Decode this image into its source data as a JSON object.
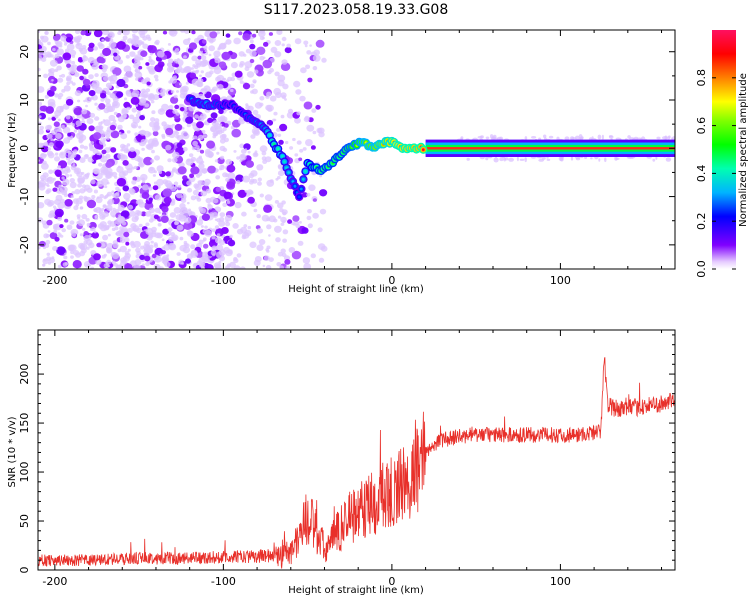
{
  "title": "S117.2023.058.19.33.G08",
  "colors": {
    "snr_line": "#e8302a",
    "low_amplitude": "#d9b3ff",
    "mid_amplitude": "#6a00ff",
    "high_amplitude": "#ff2020"
  },
  "chart_data": [
    {
      "type": "heatmap",
      "name": "spectrogram",
      "xlabel": "Height of straight line (km)",
      "ylabel": "Frequency (Hz)",
      "xlim": [
        -210,
        168
      ],
      "ylim": [
        -25,
        24.5
      ],
      "xticks": [
        -200,
        -100,
        0,
        100
      ],
      "yticks": [
        20,
        10,
        0,
        -10,
        -20
      ],
      "colorbar": {
        "label": "Normalized spectral amplitude",
        "range": [
          0.0,
          1.0
        ],
        "ticks": [
          0.0,
          0.2,
          0.4,
          0.6,
          0.8
        ],
        "colormap": "rainbow (violet to red)"
      },
      "dominant_signal": [
        {
          "x": -120,
          "f": 10,
          "a": 0.3
        },
        {
          "x": -110,
          "f": 9,
          "a": 0.35
        },
        {
          "x": -95,
          "f": 9,
          "a": 0.25
        },
        {
          "x": -75,
          "f": 4,
          "a": 0.35
        },
        {
          "x": -70,
          "f": 1,
          "a": 0.45
        },
        {
          "x": -65,
          "f": -2,
          "a": 0.4
        },
        {
          "x": -60,
          "f": -6,
          "a": 0.35
        },
        {
          "x": -55,
          "f": -10,
          "a": 0.25
        },
        {
          "x": -50,
          "f": -3,
          "a": 0.45
        },
        {
          "x": -42,
          "f": -5,
          "a": 0.55
        },
        {
          "x": -35,
          "f": -3,
          "a": 0.55
        },
        {
          "x": -30,
          "f": -1,
          "a": 0.55
        },
        {
          "x": -25,
          "f": 0,
          "a": 0.6
        },
        {
          "x": -18,
          "f": 1.5,
          "a": 0.7
        },
        {
          "x": -10,
          "f": 0,
          "a": 0.75
        },
        {
          "x": -5,
          "f": 1,
          "a": 0.8
        },
        {
          "x": 0,
          "f": 1.5,
          "a": 0.85
        },
        {
          "x": 5,
          "f": 0,
          "a": 0.9
        },
        {
          "x": 20,
          "f": 0,
          "a": 0.95
        },
        {
          "x": 168,
          "f": 0,
          "a": 0.95
        }
      ]
    },
    {
      "type": "line",
      "name": "snr",
      "xlabel": "Height of straight line (km)",
      "ylabel": "SNR (10 * v/v)",
      "xlim": [
        -210,
        168
      ],
      "ylim": [
        0,
        245
      ],
      "xticks": [
        -200,
        -100,
        0,
        100
      ],
      "yticks": [
        0,
        50,
        100,
        150,
        200
      ],
      "x": [
        -210,
        -180,
        -150,
        -120,
        -100,
        -80,
        -70,
        -60,
        -55,
        -50,
        -45,
        -40,
        -35,
        -30,
        -25,
        -20,
        -15,
        -10,
        -5,
        0,
        5,
        10,
        15,
        20,
        25,
        30,
        40,
        50,
        60,
        70,
        80,
        90,
        100,
        110,
        120,
        124,
        126,
        128,
        132,
        140,
        150,
        160,
        168
      ],
      "values": [
        10,
        10,
        12,
        12,
        13,
        14,
        15,
        18,
        35,
        55,
        40,
        20,
        30,
        45,
        55,
        60,
        65,
        70,
        75,
        80,
        85,
        90,
        100,
        118,
        128,
        133,
        136,
        138,
        138,
        138,
        138,
        138,
        138,
        138,
        140,
        142,
        220,
        168,
        165,
        165,
        167,
        170,
        172
      ]
    }
  ]
}
